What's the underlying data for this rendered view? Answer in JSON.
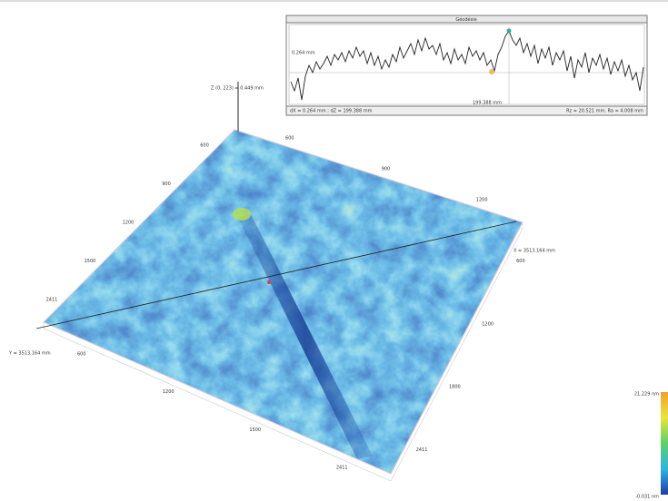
{
  "profile": {
    "title": "Géodésie",
    "z_label": "0.264 mm",
    "x_label": "199.388 mm",
    "footer_left": "dX = 0.264 mm ; dZ = 199.388 mm",
    "footer_right": "Rz = 20.521 mm, Ra = 4.008 mm"
  },
  "surface": {
    "z_axis_label": "Z (0, 223) = 0.449 mm",
    "x_axis_label": "X = 3513.164 mm",
    "y_axis_label": "Y = 3513.164 mm",
    "back_left_ticks": [
      "600",
      "900",
      "1200",
      "1500",
      "2411"
    ],
    "back_right_ticks": [
      "600",
      "900",
      "1200"
    ],
    "front_left_ticks": [
      "600",
      "1200",
      "1500",
      "2411"
    ],
    "front_right_ticks": [
      "600",
      "1200",
      "1800",
      "2411"
    ]
  },
  "colorbar": {
    "max_label": "21.229 nm",
    "min_label": "-0.031 nm"
  }
}
